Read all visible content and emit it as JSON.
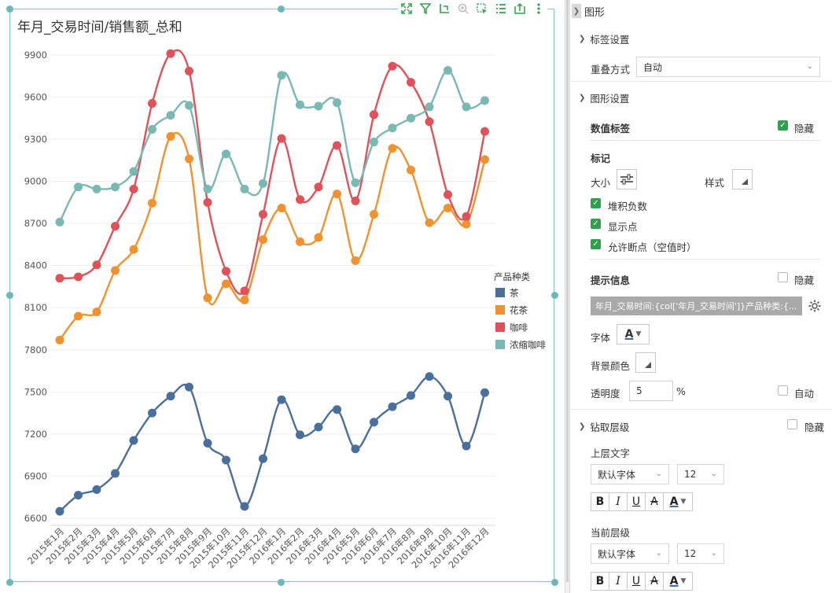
{
  "chart": {
    "title": "年月_交易时间/销售额_总和",
    "legend_title": "产品种类",
    "toolbar": [
      "expand-icon",
      "filter-icon",
      "drill-icon",
      "zoom-icon",
      "select-icon",
      "list-icon",
      "export-icon",
      "more-icon"
    ]
  },
  "chart_data": {
    "type": "line",
    "title": "年月_交易时间/销售额_总和",
    "categories": [
      "2015年1月",
      "2015年2月",
      "2015年3月",
      "2015年4月",
      "2015年5月",
      "2015年6月",
      "2015年7月",
      "2015年8月",
      "2015年9月",
      "2015年10月",
      "2015年11月",
      "2015年12月",
      "2016年1月",
      "2016年2月",
      "2016年3月",
      "2016年4月",
      "2016年5月",
      "2016年6月",
      "2016年7月",
      "2016年8月",
      "2016年9月",
      "2016年10月",
      "2016年11月",
      "2016年12月"
    ],
    "y_ticks": [
      6600,
      6900,
      7200,
      7500,
      7800,
      8100,
      8400,
      8700,
      9000,
      9300,
      9600,
      9900
    ],
    "ylim": [
      6550,
      10000
    ],
    "grid": true,
    "legend_position": "right",
    "series": [
      {
        "name": "茶",
        "color": "#4a6f9c",
        "values": [
          6650,
          6765,
          6805,
          6920,
          7155,
          7350,
          7470,
          7535,
          7135,
          7015,
          6685,
          7025,
          7445,
          7195,
          7250,
          7375,
          7095,
          7285,
          7395,
          7475,
          7610,
          7470,
          7115,
          7495
        ]
      },
      {
        "name": "花茶",
        "color": "#f0922e",
        "values": [
          7870,
          8040,
          8070,
          8365,
          8515,
          8845,
          9320,
          9160,
          8170,
          8270,
          8155,
          8585,
          8810,
          8570,
          8600,
          8910,
          8435,
          8765,
          9235,
          9080,
          8705,
          8810,
          8695,
          9155
        ]
      },
      {
        "name": "咖啡",
        "color": "#e0515a",
        "values": [
          8310,
          8320,
          8405,
          8680,
          8945,
          9555,
          9910,
          9785,
          8850,
          8360,
          8220,
          8765,
          9305,
          8870,
          8960,
          9255,
          8860,
          9475,
          9820,
          9705,
          9425,
          8905,
          8750,
          9355
        ]
      },
      {
        "name": "浓缩咖啡",
        "color": "#7ab8b2",
        "values": [
          8710,
          8960,
          8945,
          8960,
          9070,
          9370,
          9470,
          9540,
          8945,
          9195,
          8945,
          8985,
          9755,
          9545,
          9535,
          9560,
          8990,
          9280,
          9380,
          9450,
          9530,
          9790,
          9530,
          9575
        ]
      }
    ]
  },
  "panel": {
    "title": "图形",
    "label_settings": {
      "heading": "标签设置",
      "overlap_label": "重叠方式",
      "overlap_value": "自动"
    },
    "shape_settings": {
      "heading": "图形设置",
      "value_label": "数值标签",
      "value_label_hide": "隐藏",
      "marker": "标记",
      "size_label": "大小",
      "style_label": "样式",
      "stack_negative": "堆积负数",
      "show_points": "显示点",
      "allow_break": "允许断点（空值时）",
      "tooltip": "提示信息",
      "tooltip_hide": "隐藏",
      "tooltip_text": "年月_交易时间:{col['年月_交易时间']}产品种类:{...",
      "font_label": "字体",
      "bg_color_label": "背景颜色",
      "opacity_label": "透明度",
      "opacity_value": "5",
      "opacity_unit": "%",
      "opacity_auto": "自动"
    },
    "drill": {
      "heading": "钻取层级",
      "hide": "隐藏",
      "upper_text": "上层文字",
      "upper_font": "默认字体",
      "upper_size": "12",
      "current_level": "当前层级",
      "current_font": "默认字体",
      "current_size": "12"
    },
    "format_buttons": {
      "bold": "B",
      "italic": "I",
      "underline": "U",
      "strike": "A",
      "color": "A"
    }
  }
}
